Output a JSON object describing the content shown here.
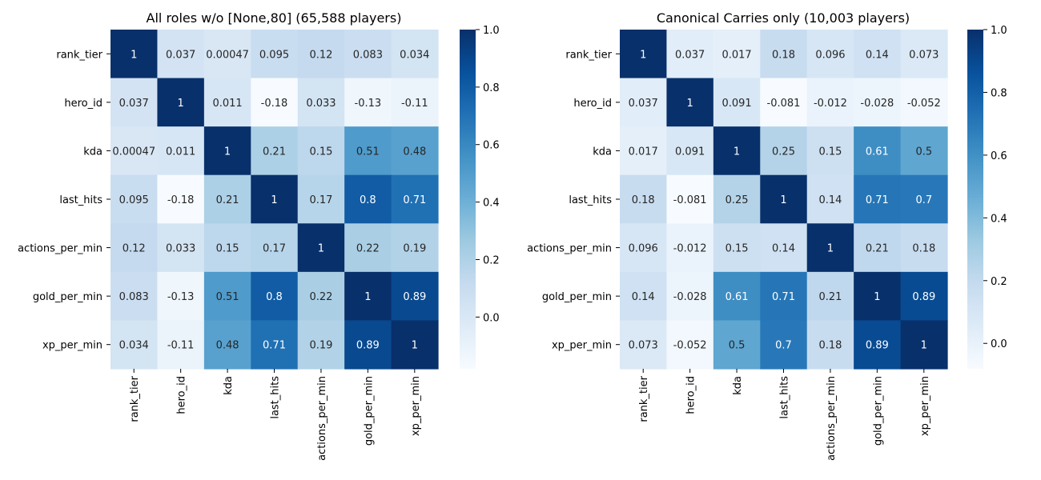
{
  "figure": {
    "background": "#ffffff",
    "colormap": [
      "#f7fbff",
      "#deebf7",
      "#c6dbef",
      "#9ecae1",
      "#6baed6",
      "#4292c6",
      "#2171b5",
      "#08519c",
      "#08306b"
    ]
  },
  "chart_data": [
    {
      "type": "heatmap",
      "title": "All roles w/o [None,80] (65,588 players)",
      "xlabel": "",
      "ylabel": "",
      "row_labels": [
        "rank_tier",
        "hero_id",
        "kda",
        "last_hits",
        "actions_per_min",
        "gold_per_min",
        "xp_per_min"
      ],
      "col_labels": [
        "rank_tier",
        "hero_id",
        "kda",
        "last_hits",
        "actions_per_min",
        "gold_per_min",
        "xp_per_min"
      ],
      "values": [
        [
          1,
          0.037,
          0.00047,
          0.095,
          0.12,
          0.083,
          0.034
        ],
        [
          0.037,
          1,
          0.011,
          -0.18,
          0.033,
          -0.13,
          -0.11
        ],
        [
          0.00047,
          0.011,
          1,
          0.21,
          0.15,
          0.51,
          0.48
        ],
        [
          0.095,
          -0.18,
          0.21,
          1,
          0.17,
          0.8,
          0.71
        ],
        [
          0.12,
          0.033,
          0.15,
          0.17,
          1,
          0.22,
          0.19
        ],
        [
          0.083,
          -0.13,
          0.51,
          0.8,
          0.22,
          1,
          0.89
        ],
        [
          0.034,
          -0.11,
          0.48,
          0.71,
          0.19,
          0.89,
          1
        ]
      ],
      "annotations": [
        [
          "1",
          "0.037",
          "0.00047",
          "0.095",
          "0.12",
          "0.083",
          "0.034"
        ],
        [
          "0.037",
          "1",
          "0.011",
          "-0.18",
          "0.033",
          "-0.13",
          "-0.11"
        ],
        [
          "0.00047",
          "0.011",
          "1",
          "0.21",
          "0.15",
          "0.51",
          "0.48"
        ],
        [
          "0.095",
          "-0.18",
          "0.21",
          "1",
          "0.17",
          "0.8",
          "0.71"
        ],
        [
          "0.12",
          "0.033",
          "0.15",
          "0.17",
          "1",
          "0.22",
          "0.19"
        ],
        [
          "0.083",
          "-0.13",
          "0.51",
          "0.8",
          "0.22",
          "1",
          "0.89"
        ],
        [
          "0.034",
          "-0.11",
          "0.48",
          "0.71",
          "0.19",
          "0.89",
          "1"
        ]
      ],
      "colorbar": {
        "range": [
          -0.18,
          1
        ],
        "ticks": [
          0,
          0.2,
          0.4,
          0.6,
          0.8,
          1
        ],
        "tick_labels": [
          "0.0",
          "0.2",
          "0.4",
          "0.6",
          "0.8",
          "1.0"
        ]
      },
      "colormap": "Blues"
    },
    {
      "type": "heatmap",
      "title": "Canonical Carries only (10,003 players)",
      "xlabel": "",
      "ylabel": "",
      "row_labels": [
        "rank_tier",
        "hero_id",
        "kda",
        "last_hits",
        "actions_per_min",
        "gold_per_min",
        "xp_per_min"
      ],
      "col_labels": [
        "rank_tier",
        "hero_id",
        "kda",
        "last_hits",
        "actions_per_min",
        "gold_per_min",
        "xp_per_min"
      ],
      "values": [
        [
          1,
          0.037,
          0.017,
          0.18,
          0.096,
          0.14,
          0.073
        ],
        [
          0.037,
          1,
          0.091,
          -0.081,
          -0.012,
          -0.028,
          -0.052
        ],
        [
          0.017,
          0.091,
          1,
          0.25,
          0.15,
          0.61,
          0.5
        ],
        [
          0.18,
          -0.081,
          0.25,
          1,
          0.14,
          0.71,
          0.7
        ],
        [
          0.096,
          -0.012,
          0.15,
          0.14,
          1,
          0.21,
          0.18
        ],
        [
          0.14,
          -0.028,
          0.61,
          0.71,
          0.21,
          1,
          0.89
        ],
        [
          0.073,
          -0.052,
          0.5,
          0.7,
          0.18,
          0.89,
          1
        ]
      ],
      "annotations": [
        [
          "1",
          "0.037",
          "0.017",
          "0.18",
          "0.096",
          "0.14",
          "0.073"
        ],
        [
          "0.037",
          "1",
          "0.091",
          "-0.081",
          "-0.012",
          "-0.028",
          "-0.052"
        ],
        [
          "0.017",
          "0.091",
          "1",
          "0.25",
          "0.15",
          "0.61",
          "0.5"
        ],
        [
          "0.18",
          "-0.081",
          "0.25",
          "1",
          "0.14",
          "0.71",
          "0.7"
        ],
        [
          "0.096",
          "-0.012",
          "0.15",
          "0.14",
          "1",
          "0.21",
          "0.18"
        ],
        [
          "0.14",
          "-0.028",
          "0.61",
          "0.71",
          "0.21",
          "1",
          "0.89"
        ],
        [
          "0.073",
          "-0.052",
          "0.5",
          "0.7",
          "0.18",
          "0.89",
          "1"
        ]
      ],
      "colorbar": {
        "range": [
          -0.081,
          1
        ],
        "ticks": [
          0,
          0.2,
          0.4,
          0.6,
          0.8,
          1
        ],
        "tick_labels": [
          "0.0",
          "0.2",
          "0.4",
          "0.6",
          "0.8",
          "1.0"
        ]
      },
      "colormap": "Blues"
    }
  ]
}
